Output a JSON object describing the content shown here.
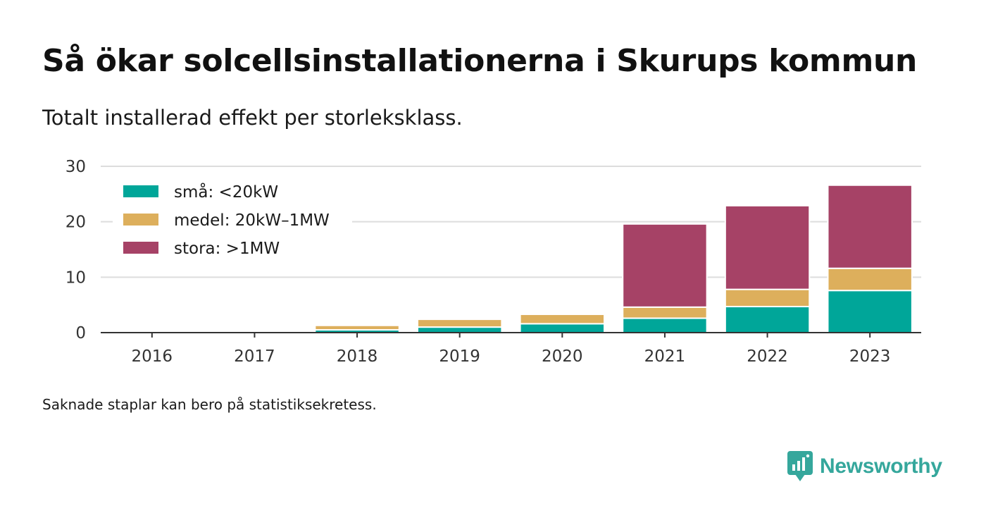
{
  "title": "Så ökar solcellsinstallationerna i Skurups kommun",
  "subtitle": "Totalt installerad effekt per storleksklass.",
  "footnote": "Saknade staplar kan bero på statistiksekretess.",
  "brand": {
    "name": "Newsworthy",
    "color": "#35a79c",
    "icon": "newsworthy-chart-bubble-icon"
  },
  "chart_data": {
    "type": "bar",
    "stacked": true,
    "categories": [
      "2016",
      "2017",
      "2018",
      "2019",
      "2020",
      "2021",
      "2022",
      "2023"
    ],
    "series": [
      {
        "name": "små: <20kW",
        "color": "#00a699",
        "values": [
          0.05,
          0.1,
          0.5,
          1.0,
          1.6,
          2.6,
          4.7,
          7.6
        ]
      },
      {
        "name": "medel: 20kW–1MW",
        "color": "#ddaf5c",
        "values": [
          0.0,
          0.0,
          0.8,
          1.4,
          1.7,
          2.0,
          3.1,
          4.0
        ]
      },
      {
        "name": "stora: >1MW",
        "color": "#a64266",
        "values": [
          0.0,
          0.0,
          0.0,
          0.0,
          0.0,
          15.0,
          15.1,
          15.0
        ]
      }
    ],
    "ylim": [
      0,
      30
    ],
    "yticks": [
      0,
      10,
      20,
      30
    ],
    "grid": true,
    "legend": "top-left"
  }
}
